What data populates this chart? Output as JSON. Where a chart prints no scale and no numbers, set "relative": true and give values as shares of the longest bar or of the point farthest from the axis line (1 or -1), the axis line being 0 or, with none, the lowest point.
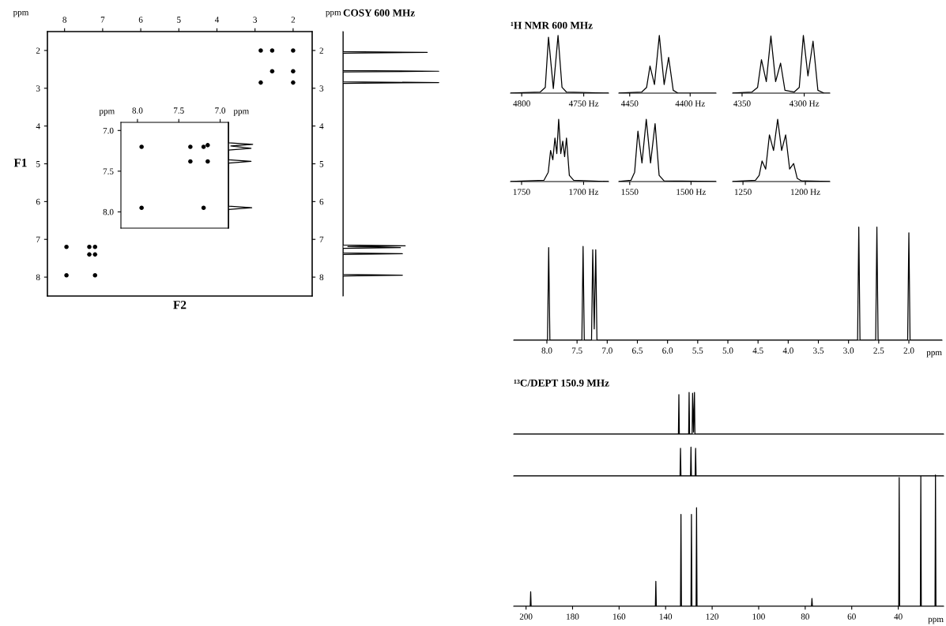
{
  "chart_data": [
    {
      "type": "scatter",
      "xlabel": "F2",
      "ylabel": "F1",
      "marker": "circle",
      "annotations": [
        "ppm",
        "ppm"
      ],
      "xlim": [
        8.45,
        1.5
      ],
      "xticks": [
        8,
        7,
        6,
        5,
        4,
        3,
        2
      ],
      "ylim": [
        8.5,
        1.5
      ],
      "yticks": [
        2,
        3,
        4,
        5,
        6,
        7,
        8
      ],
      "y2lim": [
        8.5,
        1.5
      ],
      "y2ticks": [
        2,
        3,
        4,
        5,
        6,
        7,
        8
      ],
      "series": [
        {
          "color": "#000000",
          "x": [
            2.85,
            2.55,
            2.0,
            2.55,
            2.0,
            2.85,
            2.0,
            7.95,
            7.95,
            7.35,
            7.2,
            7.35,
            7.2,
            7.2
          ],
          "values": [
            2.0,
            2.0,
            2.0,
            2.55,
            2.55,
            2.85,
            2.85,
            7.2,
            7.95,
            7.2,
            7.2,
            7.4,
            7.4,
            7.95
          ]
        }
      ]
    },
    {
      "type": "scatter",
      "marker": "circle",
      "annotations": [
        "ppm",
        "ppm"
      ],
      "xlim": [
        8.2,
        6.9
      ],
      "xticks": [
        {
          "value": 8.0,
          "label": "8.0"
        },
        {
          "value": 7.5,
          "label": "7.5"
        },
        {
          "value": 7.0,
          "label": "7.0"
        }
      ],
      "ylim": [
        8.2,
        6.9
      ],
      "yticks": [
        {
          "value": 7.0,
          "label": "7.0"
        },
        {
          "value": 7.5,
          "label": "7.5"
        },
        {
          "value": 8.0,
          "label": "8.0"
        }
      ],
      "series": [
        {
          "color": "#000000",
          "x": [
            7.95,
            7.36,
            7.2,
            7.15,
            7.36,
            7.15,
            7.95,
            7.2
          ],
          "values": [
            7.2,
            7.2,
            7.2,
            7.18,
            7.38,
            7.38,
            7.95,
            7.95
          ]
        }
      ]
    },
    {
      "type": "line",
      "orientation": "horizontal",
      "relative": true,
      "ylim": [
        8.2,
        6.9
      ],
      "tick_labels": false,
      "series": [
        {
          "color": "#000000",
          "x": [
            6.9,
            7.15,
            7.17,
            7.19,
            7.22,
            7.24,
            7.36,
            7.38,
            7.4,
            7.93,
            7.95,
            7.97,
            8.2
          ],
          "values": [
            0,
            0,
            1.0,
            0.1,
            0.93,
            0,
            0,
            0.93,
            0,
            0,
            0.96,
            0,
            0
          ]
        }
      ]
    },
    {
      "type": "line",
      "orientation": "horizontal",
      "relative": true,
      "title": "COSY 600 MHz",
      "ylim": [
        8.5,
        1.5
      ],
      "tick_labels": false,
      "series": [
        {
          "color": "#000000",
          "x": [
            1.5,
            2.03,
            2.05,
            2.07,
            2.53,
            2.55,
            2.57,
            2.83,
            2.85,
            2.87,
            7.15,
            7.17,
            7.19,
            7.22,
            7.24,
            7.36,
            7.38,
            7.4,
            7.93,
            7.95,
            7.97,
            8.5
          ],
          "values": [
            0,
            0,
            0.88,
            0,
            0,
            1.0,
            0,
            0,
            1.0,
            0,
            0,
            0.65,
            0.05,
            0.6,
            0,
            0,
            0.62,
            0,
            0,
            0.62,
            0,
            0
          ]
        }
      ]
    },
    {
      "type": "line",
      "relative": true,
      "title": "¹H NMR 600 MHz",
      "xlim": [
        4809,
        4730
      ],
      "xticks": [
        4800,
        {
          "value": 4750,
          "label": "4750 Hz"
        }
      ],
      "series": [
        {
          "color": "#000000",
          "x": [
            4809,
            4785,
            4781,
            4778.4,
            4774.5,
            4770.7,
            4767.5,
            4764,
            4730
          ],
          "values": [
            0,
            0.02,
            0.1,
            0.97,
            0.08,
            1.0,
            0.1,
            0.02,
            0
          ]
        }
      ]
    },
    {
      "type": "line",
      "relative": true,
      "xlim": [
        4459,
        4378.6
      ],
      "xticks": [
        4450,
        {
          "value": 4400,
          "label": "4400 Hz"
        }
      ],
      "series": [
        {
          "color": "#000000",
          "x": [
            4459,
            4440,
            4436,
            4433.2,
            4429.5,
            4425.5,
            4421.5,
            4417.8,
            4414,
            4410,
            4378.6
          ],
          "values": [
            0,
            0.02,
            0.1,
            0.47,
            0.15,
            1.0,
            0.15,
            0.62,
            0.05,
            0,
            0
          ]
        }
      ]
    },
    {
      "type": "line",
      "relative": true,
      "xlim": [
        4357.6,
        4279.4
      ],
      "xticks": [
        4350,
        {
          "value": 4300,
          "label": "4300 Hz"
        }
      ],
      "series": [
        {
          "color": "#000000",
          "x": [
            4357.6,
            4342,
            4337.5,
            4334.4,
            4330.5,
            4326.8,
            4323,
            4319,
            4315.5,
            4308,
            4304,
            4300.7,
            4297,
            4292.9,
            4289,
            4284,
            4279.4
          ],
          "values": [
            0,
            0.02,
            0.1,
            0.58,
            0.2,
            0.99,
            0.2,
            0.52,
            0.05,
            0.02,
            0.1,
            1.0,
            0.3,
            0.9,
            0.05,
            0,
            0
          ]
        }
      ]
    },
    {
      "type": "line",
      "relative": true,
      "xlim": [
        1758.9,
        1679.9
      ],
      "xticks": [
        1750,
        {
          "value": 1700,
          "label": "1700 Hz"
        }
      ],
      "series": [
        {
          "color": "#000000",
          "x": [
            1758.9,
            1732,
            1728.5,
            1726.6,
            1724.8,
            1723.1,
            1721.6,
            1720.1,
            1718.4,
            1716.8,
            1715.3,
            1713.8,
            1711.5,
            1708,
            1679.9
          ],
          "values": [
            0,
            0.02,
            0.15,
            0.5,
            0.35,
            0.7,
            0.45,
            1.0,
            0.45,
            0.65,
            0.4,
            0.7,
            0.1,
            0.02,
            0
          ]
        }
      ]
    },
    {
      "type": "line",
      "relative": true,
      "xlim": [
        1558.9,
        1479.6
      ],
      "xticks": [
        1550,
        {
          "value": 1500,
          "label": "1500 Hz"
        }
      ],
      "series": [
        {
          "color": "#000000",
          "x": [
            1558.9,
            1549,
            1546,
            1543.3,
            1540,
            1536.5,
            1533,
            1529.3,
            1526,
            1522,
            1479.6
          ],
          "values": [
            0,
            0.02,
            0.15,
            0.81,
            0.3,
            1.0,
            0.3,
            0.93,
            0.1,
            0.01,
            0
          ]
        }
      ]
    },
    {
      "type": "line",
      "relative": true,
      "xlim": [
        1258.3,
        1180.4
      ],
      "xticks": [
        1250,
        {
          "value": 1200,
          "label": "1200 Hz"
        }
      ],
      "series": [
        {
          "color": "#000000",
          "x": [
            1258.3,
            1240,
            1237,
            1234.7,
            1231.8,
            1228.8,
            1225.5,
            1222.2,
            1219,
            1215.8,
            1212.6,
            1209.4,
            1206.5,
            1203,
            1180.4
          ],
          "values": [
            0,
            0.02,
            0.1,
            0.33,
            0.2,
            0.75,
            0.5,
            1.0,
            0.5,
            0.75,
            0.2,
            0.29,
            0.05,
            0.01,
            0
          ]
        }
      ]
    },
    {
      "type": "line",
      "relative": true,
      "annotations": [
        "ppm"
      ],
      "xlim": [
        8.55,
        1.45
      ],
      "xticks": [
        {
          "value": 8.0,
          "label": "8.0"
        },
        {
          "value": 7.5,
          "label": "7.5"
        },
        {
          "value": 7.0,
          "label": "7.0"
        },
        {
          "value": 6.5,
          "label": "6.5"
        },
        {
          "value": 6.0,
          "label": "6.0"
        },
        {
          "value": 5.5,
          "label": "5.5"
        },
        {
          "value": 5.0,
          "label": "5.0"
        },
        {
          "value": 4.5,
          "label": "4.5"
        },
        {
          "value": 4.0,
          "label": "4.0"
        },
        {
          "value": 3.5,
          "label": "3.5"
        },
        {
          "value": 3.0,
          "label": "3.0"
        },
        {
          "value": 2.5,
          "label": "2.5"
        },
        {
          "value": 2.0,
          "label": "2.0"
        }
      ],
      "series": [
        {
          "color": "#000000",
          "x": [
            8.55,
            7.99,
            7.97,
            7.95,
            7.42,
            7.4,
            7.38,
            7.26,
            7.24,
            7.215,
            7.19,
            7.17,
            2.85,
            2.83,
            2.81,
            2.55,
            2.53,
            2.51,
            2.02,
            2.0,
            1.98,
            1.45
          ],
          "values": [
            0,
            0,
            0.82,
            0,
            0,
            0.83,
            0,
            0,
            0.8,
            0.1,
            0.8,
            0,
            0,
            1.0,
            0,
            0,
            1.0,
            0,
            0,
            0.95,
            0,
            0
          ]
        }
      ]
    },
    {
      "type": "line",
      "relative": true,
      "title": "¹³C/DEPT 150.9 MHz",
      "xlim": [
        205.3,
        20.5
      ],
      "xticks": [
        200,
        180,
        160,
        140,
        120,
        100,
        80,
        60,
        40
      ],
      "tick_labels": false,
      "series": [
        {
          "color": "#000000",
          "x": [
            205.3,
            134.5,
            134.3,
            134.1,
            130.1,
            129.9,
            129.7,
            128.6,
            128.4,
            128.0,
            127.6,
            127.4,
            20.5
          ],
          "values": [
            0,
            0,
            0.95,
            0,
            0,
            1.0,
            0,
            0,
            0.98,
            0.05,
            1.0,
            0,
            0
          ]
        }
      ]
    },
    {
      "type": "line",
      "relative": true,
      "xlim": [
        205.3,
        20.5
      ],
      "xticks": [
        200,
        180,
        160,
        140,
        120,
        100,
        80,
        60,
        40
      ],
      "tick_labels": false,
      "series": [
        {
          "color": "#000000",
          "x": [
            205.3,
            133.8,
            133.6,
            133.4,
            129.3,
            129.1,
            128.9,
            127.3,
            127.1,
            126.9,
            20.5
          ],
          "values": [
            0,
            0,
            0.96,
            0,
            0,
            1.0,
            0,
            0,
            0.96,
            0,
            0
          ]
        }
      ]
    },
    {
      "type": "line",
      "relative": true,
      "annotations": [
        "ppm"
      ],
      "xlim": [
        205.3,
        20.5
      ],
      "xticks": [
        200,
        180,
        160,
        140,
        120,
        100,
        80,
        60,
        40
      ],
      "series": [
        {
          "color": "#000000",
          "x": [
            205.3,
            198.2,
            198.0,
            197.8,
            144.4,
            144.2,
            144.0,
            133.6,
            133.4,
            133.2,
            129.1,
            128.9,
            128.7,
            126.9,
            126.7,
            126.5,
            77.3,
            77.1,
            76.9,
            39.8,
            39.6,
            39.4,
            30.5,
            30.3,
            30.1,
            24.2,
            24.0,
            23.8,
            20.5
          ],
          "values": [
            0,
            0,
            0.11,
            0,
            0,
            0.19,
            0,
            0,
            0.7,
            0,
            0,
            0.7,
            0,
            0,
            0.75,
            0,
            0,
            0.06,
            0,
            0,
            0.98,
            0,
            0,
            0.99,
            0,
            0,
            1.0,
            0,
            0
          ]
        }
      ]
    }
  ]
}
